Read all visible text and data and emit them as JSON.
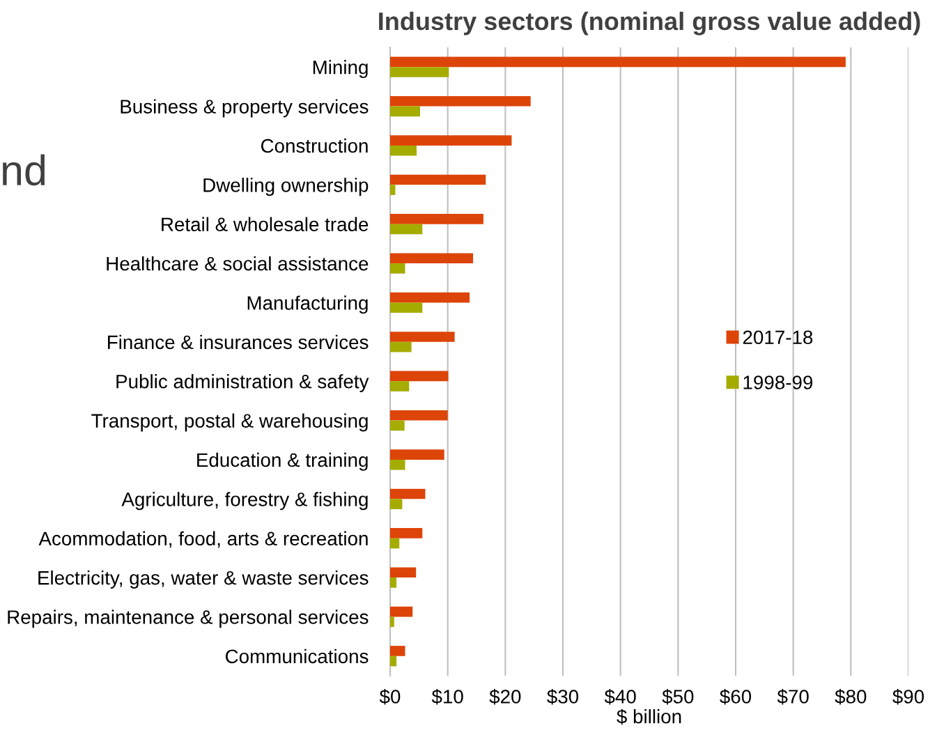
{
  "chart_data": {
    "type": "bar",
    "orientation": "horizontal",
    "title": "Industry sectors (nominal gross value added)",
    "xlabel": "$ billion",
    "categories": [
      "Mining",
      "Business & property services",
      "Construction",
      "Dwelling ownership",
      "Retail & wholesale trade",
      "Healthcare & social assistance",
      "Manufacturing",
      "Finance & insurances services",
      "Public administration & safety",
      "Transport, postal & warehousing",
      "Education & training",
      "Agriculture, forestry & fishing",
      "Acommodation, food, arts & recreation",
      "Electricity, gas, water & waste services",
      "Repairs, maintenance & personal services",
      "Communications"
    ],
    "series": [
      {
        "name": "2017-18",
        "color": "#dd4408",
        "values": [
          79.1,
          24.4,
          21.1,
          16.6,
          16.2,
          14.4,
          13.8,
          11.2,
          10.1,
          10.0,
          9.4,
          6.1,
          5.6,
          4.5,
          3.9,
          2.6
        ]
      },
      {
        "name": "1998-99",
        "color": "#a5ac00",
        "values": [
          10.2,
          5.2,
          4.6,
          0.9,
          5.6,
          2.6,
          5.6,
          3.7,
          3.3,
          2.5,
          2.6,
          2.1,
          1.6,
          1.1,
          0.7,
          1.1
        ]
      }
    ],
    "xlim": [
      0,
      90
    ],
    "xticks": [
      {
        "value": 0,
        "label": "$0"
      },
      {
        "value": 10,
        "label": "$10"
      },
      {
        "value": 20,
        "label": "$20"
      },
      {
        "value": 30,
        "label": "$30"
      },
      {
        "value": 40,
        "label": "$40"
      },
      {
        "value": 50,
        "label": "$50"
      },
      {
        "value": 60,
        "label": "$60"
      },
      {
        "value": 70,
        "label": "$70"
      },
      {
        "value": 80,
        "label": "$80"
      },
      {
        "value": 90,
        "label": "$90"
      }
    ],
    "grid": "x",
    "legend": "right",
    "annotations": [
      "nd"
    ]
  }
}
